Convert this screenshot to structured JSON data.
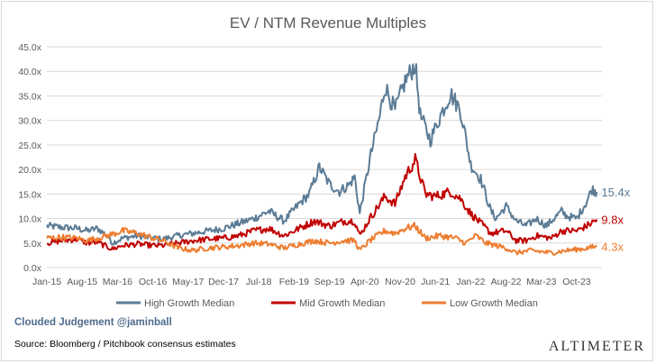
{
  "chart_data": {
    "type": "line",
    "title": "EV / NTM Revenue Multiples",
    "xlabel": "",
    "ylabel": "",
    "ylim": [
      0,
      45
    ],
    "y_ticks": [
      "0.0x",
      "5.0x",
      "10.0x",
      "15.0x",
      "20.0x",
      "25.0x",
      "30.0x",
      "35.0x",
      "40.0x",
      "45.0x"
    ],
    "y_tick_values": [
      0,
      5,
      10,
      15,
      20,
      25,
      30,
      35,
      40,
      45
    ],
    "x_ticks": [
      "Jan-15",
      "Aug-15",
      "Mar-16",
      "Oct-16",
      "May-17",
      "Dec-17",
      "Jul-18",
      "Feb-19",
      "Sep-19",
      "Apr-20",
      "Nov-20",
      "Jun-21",
      "Jan-22",
      "Aug-22",
      "Mar-23",
      "Oct-23"
    ],
    "x_range": [
      "2015-01",
      "2024-03"
    ],
    "grid": "horizontal",
    "legend": "bottom",
    "series": [
      {
        "name": "High Growth Median",
        "color": "#5b7b95",
        "end_label": "15.4x",
        "points": [
          [
            "2015-01",
            8.5
          ],
          [
            "2015-04",
            8.2
          ],
          [
            "2015-07",
            8.0
          ],
          [
            "2015-09",
            7.5
          ],
          [
            "2015-11",
            8.0
          ],
          [
            "2016-01",
            6.5
          ],
          [
            "2016-02",
            5.0
          ],
          [
            "2016-04",
            6.0
          ],
          [
            "2016-07",
            6.5
          ],
          [
            "2016-10",
            6.0
          ],
          [
            "2016-12",
            5.8
          ],
          [
            "2017-03",
            6.5
          ],
          [
            "2017-06",
            7.0
          ],
          [
            "2017-09",
            7.5
          ],
          [
            "2017-12",
            8.0
          ],
          [
            "2018-03",
            9.0
          ],
          [
            "2018-06",
            10.0
          ],
          [
            "2018-09",
            11.5
          ],
          [
            "2018-12",
            9.5
          ],
          [
            "2019-03",
            13.0
          ],
          [
            "2019-05",
            15.0
          ],
          [
            "2019-07",
            20.5
          ],
          [
            "2019-09",
            17.0
          ],
          [
            "2019-11",
            15.5
          ],
          [
            "2020-01",
            17.0
          ],
          [
            "2020-02",
            18.5
          ],
          [
            "2020-03",
            11.0
          ],
          [
            "2020-05",
            22.0
          ],
          [
            "2020-07",
            31.0
          ],
          [
            "2020-08",
            37.0
          ],
          [
            "2020-10",
            32.0
          ],
          [
            "2020-12",
            38.0
          ],
          [
            "2021-02",
            41.5
          ],
          [
            "2021-03",
            31.0
          ],
          [
            "2021-05",
            26.0
          ],
          [
            "2021-07",
            31.0
          ],
          [
            "2021-09",
            35.5
          ],
          [
            "2021-11",
            32.0
          ],
          [
            "2022-01",
            21.0
          ],
          [
            "2022-03",
            18.0
          ],
          [
            "2022-05",
            11.5
          ],
          [
            "2022-06",
            10.0
          ],
          [
            "2022-08",
            12.5
          ],
          [
            "2022-10",
            9.5
          ],
          [
            "2022-12",
            8.5
          ],
          [
            "2023-02",
            10.0
          ],
          [
            "2023-04",
            8.5
          ],
          [
            "2023-07",
            11.5
          ],
          [
            "2023-08",
            10.5
          ],
          [
            "2023-10",
            10.0
          ],
          [
            "2023-12",
            13.5
          ],
          [
            "2024-01",
            16.0
          ],
          [
            "2024-02",
            15.4
          ]
        ]
      },
      {
        "name": "Mid Growth Median",
        "color": "#c00000",
        "end_label": "9.8x",
        "points": [
          [
            "2015-01",
            5.0
          ],
          [
            "2015-04",
            5.5
          ],
          [
            "2015-07",
            5.8
          ],
          [
            "2015-09",
            5.0
          ],
          [
            "2015-11",
            5.2
          ],
          [
            "2016-01",
            4.2
          ],
          [
            "2016-02",
            3.8
          ],
          [
            "2016-04",
            4.5
          ],
          [
            "2016-07",
            4.8
          ],
          [
            "2016-10",
            4.5
          ],
          [
            "2016-12",
            4.5
          ],
          [
            "2017-03",
            5.0
          ],
          [
            "2017-06",
            5.5
          ],
          [
            "2017-09",
            5.8
          ],
          [
            "2017-12",
            6.0
          ],
          [
            "2018-03",
            6.5
          ],
          [
            "2018-06",
            7.5
          ],
          [
            "2018-09",
            8.0
          ],
          [
            "2018-12",
            6.5
          ],
          [
            "2019-03",
            8.0
          ],
          [
            "2019-06",
            9.5
          ],
          [
            "2019-09",
            8.5
          ],
          [
            "2019-12",
            9.5
          ],
          [
            "2020-02",
            9.5
          ],
          [
            "2020-03",
            6.5
          ],
          [
            "2020-05",
            10.0
          ],
          [
            "2020-08",
            14.5
          ],
          [
            "2020-10",
            13.0
          ],
          [
            "2020-12",
            18.5
          ],
          [
            "2021-02",
            22.0
          ],
          [
            "2021-04",
            15.0
          ],
          [
            "2021-06",
            14.5
          ],
          [
            "2021-09",
            15.5
          ],
          [
            "2021-11",
            14.0
          ],
          [
            "2022-01",
            11.0
          ],
          [
            "2022-05",
            7.0
          ],
          [
            "2022-08",
            7.5
          ],
          [
            "2022-10",
            5.5
          ],
          [
            "2022-12",
            5.5
          ],
          [
            "2023-02",
            6.5
          ],
          [
            "2023-05",
            6.0
          ],
          [
            "2023-07",
            7.5
          ],
          [
            "2023-10",
            7.5
          ],
          [
            "2023-12",
            8.5
          ],
          [
            "2024-02",
            9.8
          ]
        ]
      },
      {
        "name": "Low Growth Median",
        "color": "#ed7d31",
        "end_label": "4.3x",
        "points": [
          [
            "2015-01",
            6.0
          ],
          [
            "2015-04",
            6.2
          ],
          [
            "2015-07",
            6.0
          ],
          [
            "2015-09",
            5.5
          ],
          [
            "2015-11",
            6.0
          ],
          [
            "2016-01",
            6.5
          ],
          [
            "2016-04",
            7.5
          ],
          [
            "2016-07",
            7.0
          ],
          [
            "2016-10",
            6.0
          ],
          [
            "2016-12",
            5.5
          ],
          [
            "2017-03",
            4.0
          ],
          [
            "2017-06",
            3.5
          ],
          [
            "2017-09",
            4.0
          ],
          [
            "2017-12",
            4.2
          ],
          [
            "2018-03",
            4.5
          ],
          [
            "2018-06",
            5.0
          ],
          [
            "2018-09",
            4.8
          ],
          [
            "2018-12",
            4.0
          ],
          [
            "2019-03",
            4.8
          ],
          [
            "2019-06",
            5.5
          ],
          [
            "2019-09",
            5.0
          ],
          [
            "2019-12",
            5.5
          ],
          [
            "2020-02",
            5.5
          ],
          [
            "2020-03",
            3.5
          ],
          [
            "2020-05",
            5.5
          ],
          [
            "2020-08",
            7.5
          ],
          [
            "2020-10",
            7.0
          ],
          [
            "2020-12",
            8.0
          ],
          [
            "2021-02",
            8.5
          ],
          [
            "2021-04",
            6.0
          ],
          [
            "2021-07",
            6.5
          ],
          [
            "2021-10",
            6.0
          ],
          [
            "2021-12",
            5.0
          ],
          [
            "2022-02",
            6.5
          ],
          [
            "2022-04",
            5.0
          ],
          [
            "2022-08",
            4.0
          ],
          [
            "2022-10",
            3.0
          ],
          [
            "2023-01",
            3.5
          ],
          [
            "2023-05",
            3.0
          ],
          [
            "2023-08",
            3.5
          ],
          [
            "2023-11",
            3.8
          ],
          [
            "2024-02",
            4.3
          ]
        ]
      }
    ]
  },
  "footer": {
    "credit": "Clouded Judgement @jaminball",
    "source": "Source: Bloomberg / Pitchbook consensus estimates",
    "brand": "ALTIMETER"
  }
}
